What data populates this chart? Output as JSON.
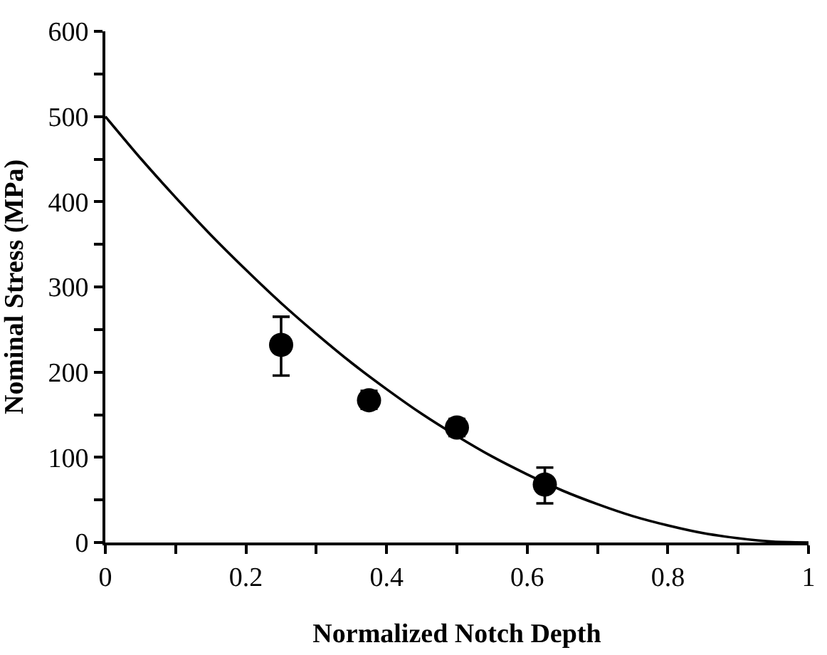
{
  "chart_data": {
    "type": "scatter",
    "xlabel": "Normalized Notch Depth",
    "ylabel": "Nominal Stress (MPa)",
    "xlim": [
      0,
      1
    ],
    "ylim": [
      0,
      600
    ],
    "xticks": [
      0,
      {
        "value": 0.1,
        "label": null
      },
      0.2,
      {
        "value": 0.3,
        "label": null
      },
      0.4,
      {
        "value": 0.5,
        "label": null
      },
      0.6,
      {
        "value": 0.7,
        "label": null
      },
      0.8,
      {
        "value": 0.9,
        "label": null
      },
      1
    ],
    "yticks": [
      0,
      {
        "value": 50,
        "label": null
      },
      100,
      {
        "value": 150,
        "label": null
      },
      200,
      {
        "value": 250,
        "label": null
      },
      300,
      {
        "value": 350,
        "label": null
      },
      400,
      {
        "value": 450,
        "label": null
      },
      500,
      {
        "value": 550,
        "label": null
      },
      600
    ],
    "series": [
      {
        "type": "line",
        "color": "#000000",
        "marker": "none",
        "line_style": "solid",
        "x": [
          0,
          0.05,
          0.1,
          0.15,
          0.2,
          0.25,
          0.3,
          0.35,
          0.4,
          0.45,
          0.5,
          0.55,
          0.6,
          0.65,
          0.7,
          0.75,
          0.8,
          0.85,
          0.9,
          0.95,
          1
        ],
        "values": [
          500,
          451,
          405,
          361,
          320,
          281,
          245,
          211,
          180,
          151,
          125,
          101,
          80,
          61,
          45,
          31,
          20,
          11,
          5,
          1,
          0
        ]
      },
      {
        "color": "#000000",
        "marker": "circle",
        "x": [
          0.25,
          0.375,
          0.5,
          0.625
        ],
        "values": [
          232,
          167,
          135,
          68
        ],
        "errors": [
          [
            196,
            265
          ],
          [
            157,
            178
          ],
          [
            125,
            145
          ],
          [
            46,
            88
          ]
        ]
      }
    ]
  }
}
